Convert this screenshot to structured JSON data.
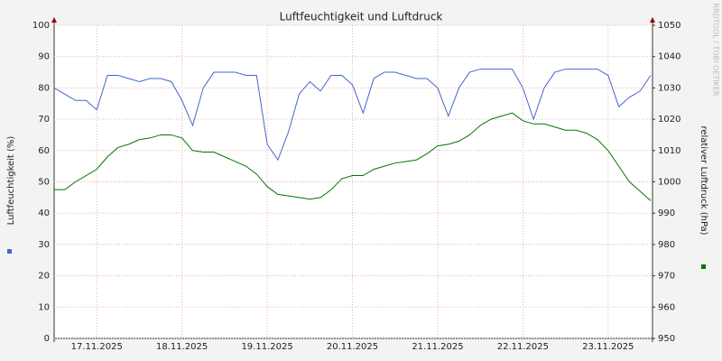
{
  "chart_data": {
    "type": "line",
    "title": "Luftfeuchtigkeit und Luftdruck",
    "ylabel": "Luftfeuchtigkeit (%)",
    "y2label": "relativer Luftdruck (hPa)",
    "watermark": "RRDTOOL / TOBI OETIKER",
    "x": [
      0,
      3,
      6,
      9,
      12,
      15,
      18,
      21,
      24,
      27,
      30,
      33,
      36,
      39,
      42,
      45,
      48,
      51,
      54,
      57,
      60,
      63,
      66,
      69,
      72,
      75,
      78,
      81,
      84,
      87,
      90,
      93,
      96,
      99,
      102,
      105,
      108,
      111,
      114,
      117,
      120,
      123,
      126,
      129,
      132,
      135,
      138,
      141,
      144,
      147,
      150,
      153,
      156,
      159,
      162,
      165,
      168
    ],
    "xlim": [
      0,
      168.5
    ],
    "xticks": [
      {
        "value": 12,
        "label": "17.11.2025"
      },
      {
        "value": 36,
        "label": "18.11.2025"
      },
      {
        "value": 60,
        "label": "19.11.2025"
      },
      {
        "value": 84,
        "label": "20.11.2025"
      },
      {
        "value": 108,
        "label": "21.11.2025"
      },
      {
        "value": 132,
        "label": "22.11.2025"
      },
      {
        "value": 156,
        "label": "23.11.2025"
      }
    ],
    "ylim": [
      0,
      100
    ],
    "yticks": [
      0,
      10,
      20,
      30,
      40,
      50,
      60,
      70,
      80,
      90,
      100
    ],
    "y2lim": [
      950,
      1050
    ],
    "y2ticks": [
      950,
      960,
      970,
      980,
      990,
      1000,
      1010,
      1020,
      1030,
      1040,
      1050
    ],
    "grid": true,
    "series": [
      {
        "color": "#4466cc",
        "values": [
          80,
          78,
          76,
          76,
          73,
          84,
          84,
          83,
          82,
          83,
          83,
          82,
          76,
          68,
          80,
          85,
          85,
          85,
          84,
          84,
          62,
          57,
          66,
          78,
          82,
          79,
          84,
          84,
          81,
          72,
          83,
          85,
          85,
          84,
          83,
          83,
          80,
          71,
          80,
          85,
          86,
          86,
          86,
          86,
          80,
          70,
          80,
          85,
          86,
          86,
          86,
          86,
          84,
          74,
          77,
          79,
          84
        ]
      },
      {
        "color": "#007700",
        "axis": "y2",
        "values": [
          997.5,
          997.5,
          1000,
          1002,
          1004,
          1008,
          1011,
          1012,
          1013.5,
          1014,
          1015,
          1015,
          1014,
          1010,
          1009.5,
          1009.5,
          1008,
          1006.5,
          1005,
          1002.5,
          998.5,
          996,
          995.5,
          995,
          994.5,
          995,
          997.5,
          1001,
          1002,
          1002,
          1004,
          1005,
          1006,
          1006.5,
          1007,
          1009,
          1011.5,
          1012,
          1013,
          1015,
          1018,
          1020,
          1021,
          1022,
          1019.5,
          1018.5,
          1018.5,
          1017.5,
          1016.5,
          1016.5,
          1015.5,
          1013.5,
          1010,
          1005,
          1000,
          997,
          994
        ]
      }
    ]
  }
}
